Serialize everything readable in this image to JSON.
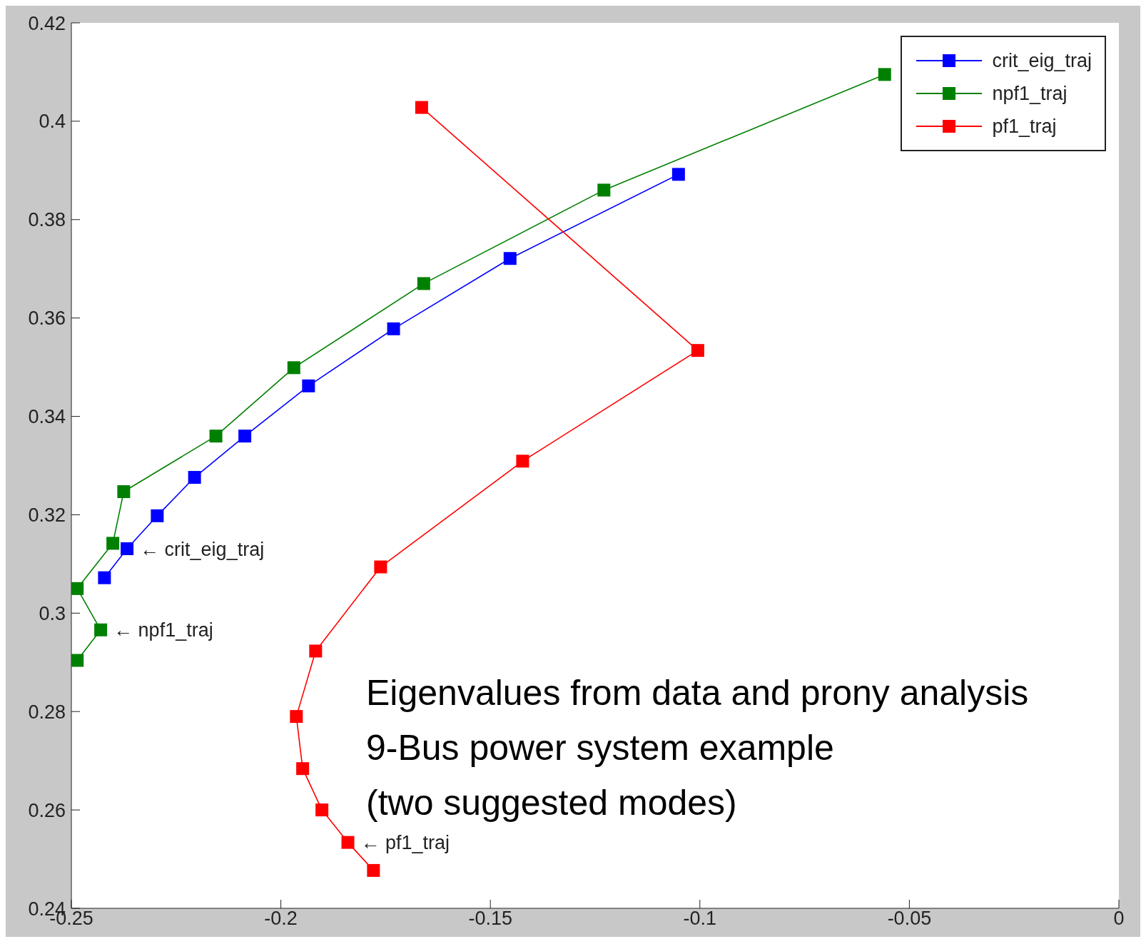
{
  "chart_data": {
    "type": "line",
    "xlim": [
      -0.25,
      0
    ],
    "ylim": [
      0.24,
      0.42
    ],
    "xticks": [
      -0.25,
      -0.2,
      -0.15,
      -0.1,
      -0.05,
      0
    ],
    "yticks": [
      0.24,
      0.26,
      0.28,
      0.3,
      0.32,
      0.34,
      0.36,
      0.38,
      0.4,
      0.42
    ],
    "grid": false,
    "legend": "top right",
    "marker": "square",
    "line_style": "solid",
    "series": [
      {
        "name": "crit_eig_traj",
        "color": "#0000ff",
        "x": [
          -0.2421,
          -0.2367,
          -0.2295,
          -0.2206,
          -0.2086,
          -0.1934,
          -0.1731,
          -0.1453,
          -0.1051
        ],
        "values": [
          0.3072,
          0.3131,
          0.3198,
          0.3276,
          0.336,
          0.3462,
          0.3578,
          0.3721,
          0.3892
        ]
      },
      {
        "name": "npf1_traj",
        "color": "#008000",
        "x": [
          -0.2486,
          -0.243,
          -0.2486,
          -0.2401,
          -0.2375,
          -0.2155,
          -0.1969,
          -0.1659,
          -0.1229,
          -0.0559
        ],
        "values": [
          0.2904,
          0.2966,
          0.305,
          0.3142,
          0.3247,
          0.336,
          0.3499,
          0.367,
          0.386,
          0.4095
        ]
      },
      {
        "name": "pf1_traj",
        "color": "#ff0000",
        "x": [
          -0.1779,
          -0.184,
          -0.1902,
          -0.1948,
          -0.1963,
          -0.1917,
          -0.1762,
          -0.1423,
          -0.1005,
          -0.1664
        ],
        "values": [
          0.2477,
          0.2534,
          0.26,
          0.2684,
          0.279,
          0.2923,
          0.3094,
          0.3309,
          0.3534,
          0.4028
        ]
      }
    ],
    "annotations": [
      {
        "text": "← crit_eig_traj",
        "x": -0.2367,
        "y": 0.3131
      },
      {
        "text": "← npf1_traj",
        "x": -0.243,
        "y": 0.2966
      },
      {
        "text": "← pf1_traj",
        "x": -0.184,
        "y": 0.2534
      },
      "Eigenvalues from data and prony analysis",
      "9-Bus power system example",
      "(two suggested modes)"
    ]
  }
}
